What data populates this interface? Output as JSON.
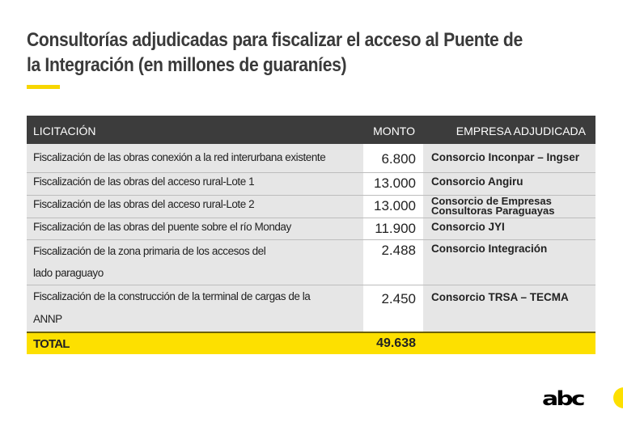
{
  "header": {
    "title": "Consultorías adjudicadas para fiscalizar el acceso al Puente de la Integración (en millones de guaraníes)",
    "accent_color": "#f7d600"
  },
  "table": {
    "columns": [
      "LICITACIÓN",
      "MONTO",
      "EMPRESA ADJUDICADA"
    ],
    "rows": [
      {
        "licitacion": "Fiscalización de las obras conexión a la red interurbana existente",
        "monto": "6.800",
        "empresa": "Consorcio Inconpar – Ingser"
      },
      {
        "licitacion": "Fiscalización de las obras del acceso rural-Lote 1",
        "monto": "13.000",
        "empresa": "Consorcio Angiru"
      },
      {
        "licitacion": "Fiscalización de las obras del acceso rural-Lote 2",
        "monto": "13.000",
        "empresa": "Consorcio de Empresas Consultoras Paraguayas"
      },
      {
        "licitacion": "Fiscalización de las obras del puente sobre el río Monday",
        "monto": "11.900",
        "empresa": "Consorcio JYI"
      },
      {
        "licitacion": "Fiscalización de la zona primaria de los accesos del lado paraguayo",
        "monto": "2.488",
        "empresa": "Consorcio Integración"
      },
      {
        "licitacion": "Fiscalización de la construcción de la terminal de cargas de la ANNP",
        "monto": "2.450",
        "empresa": "Consorcio TRSA – TECMA"
      }
    ],
    "total": {
      "label": "TOTAL",
      "value": "49.638"
    },
    "header_bg": "#3c3c3c",
    "total_bg": "#fde000"
  },
  "branding": {
    "logo_text": "abc",
    "logo_accent": "#fde000"
  }
}
